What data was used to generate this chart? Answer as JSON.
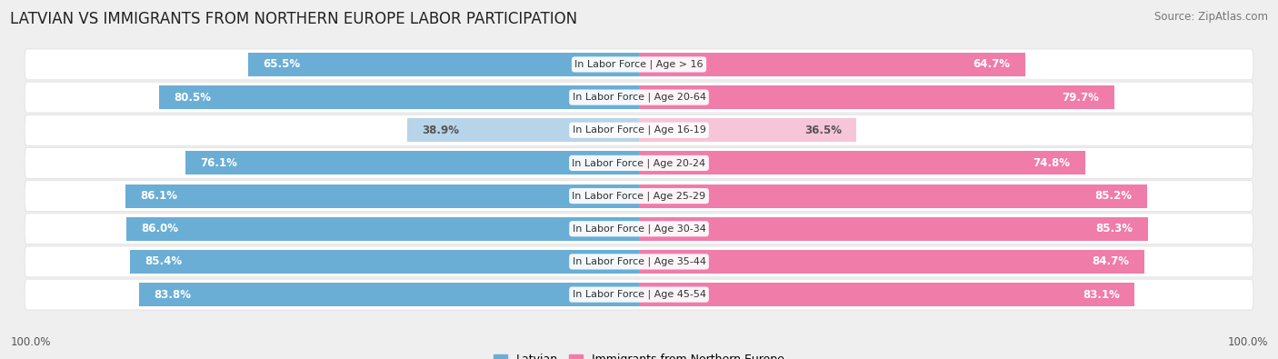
{
  "title": "LATVIAN VS IMMIGRANTS FROM NORTHERN EUROPE LABOR PARTICIPATION",
  "source": "Source: ZipAtlas.com",
  "categories": [
    "In Labor Force | Age > 16",
    "In Labor Force | Age 20-64",
    "In Labor Force | Age 16-19",
    "In Labor Force | Age 20-24",
    "In Labor Force | Age 25-29",
    "In Labor Force | Age 30-34",
    "In Labor Force | Age 35-44",
    "In Labor Force | Age 45-54"
  ],
  "latvian_values": [
    65.5,
    80.5,
    38.9,
    76.1,
    86.1,
    86.0,
    85.4,
    83.8
  ],
  "immigrant_values": [
    64.7,
    79.7,
    36.5,
    74.8,
    85.2,
    85.3,
    84.7,
    83.1
  ],
  "latvian_color": "#6aaed6",
  "latvian_color_light": "#b8d4e8",
  "immigrant_color": "#f07caa",
  "immigrant_color_light": "#f7c5d8",
  "label_latvian": "Latvian",
  "label_immigrant": "Immigrants from Northern Europe",
  "bg_color": "#efefef",
  "row_bg_even": "#f5f5f5",
  "row_bg_odd": "#e8e8e8",
  "title_fontsize": 12,
  "source_fontsize": 8.5,
  "bar_label_fontsize": 8.5,
  "category_fontsize": 8,
  "footer_label": "100.0%"
}
